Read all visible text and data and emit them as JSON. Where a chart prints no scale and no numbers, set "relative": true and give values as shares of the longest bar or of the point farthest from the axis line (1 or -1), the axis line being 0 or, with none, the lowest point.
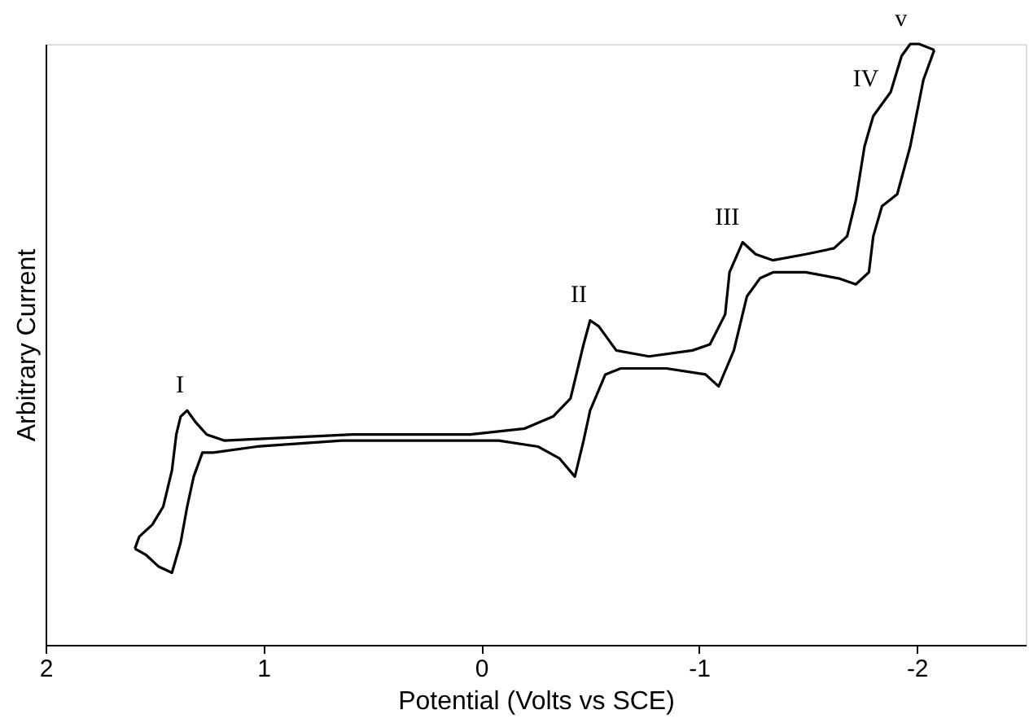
{
  "chart_data": {
    "type": "line",
    "relative": true,
    "xlabel": "Potential (Volts vs SCE)",
    "ylabel": "Arbitrary Current",
    "xlim": [
      2,
      -2.5
    ],
    "xticks": [
      2,
      1,
      0,
      -1,
      -2
    ],
    "grid": false,
    "marker": "none",
    "line_style": "solid",
    "series": [
      {
        "color": "#000000",
        "x": [
          1.59,
          1.57,
          1.51,
          1.46,
          1.42,
          1.4,
          1.38,
          1.35,
          1.31,
          1.26,
          1.18,
          0.59,
          0.05,
          -0.2,
          -0.33,
          -0.41,
          -0.47,
          -0.5,
          -0.54,
          -0.62,
          -0.77,
          -0.97,
          -1.05,
          -1.12,
          -1.14,
          -1.2,
          -1.26,
          -1.34,
          -1.49,
          -1.62,
          -1.68,
          -1.72,
          -1.76,
          -1.8,
          -1.84,
          -1.88,
          -1.93,
          -1.97,
          -2.01,
          -2.08
        ],
        "values": [
          0.16,
          0.18,
          0.2,
          0.23,
          0.29,
          0.35,
          0.38,
          0.39,
          0.37,
          0.35,
          0.34,
          0.35,
          0.35,
          0.36,
          0.38,
          0.41,
          0.5,
          0.54,
          0.53,
          0.49,
          0.48,
          0.49,
          0.5,
          0.55,
          0.62,
          0.67,
          0.65,
          0.64,
          0.65,
          0.66,
          0.68,
          0.74,
          0.83,
          0.88,
          0.9,
          0.92,
          0.98,
          1.0,
          1.0,
          0.99
        ]
      },
      {
        "color": "#000000",
        "x": [
          -2.08,
          -2.03,
          -1.97,
          -1.91,
          -1.84,
          -1.8,
          -1.78,
          -1.72,
          -1.64,
          -1.49,
          -1.34,
          -1.28,
          -1.22,
          -1.16,
          -1.09,
          -1.03,
          -0.85,
          -0.64,
          -0.57,
          -0.5,
          -0.47,
          -0.43,
          -0.36,
          -0.26,
          -0.08,
          0.05,
          0.64,
          1.03,
          1.23,
          1.28,
          1.32,
          1.35,
          1.38,
          1.42,
          1.48,
          1.54,
          1.59
        ],
        "values": [
          0.99,
          0.94,
          0.83,
          0.75,
          0.73,
          0.68,
          0.62,
          0.6,
          0.61,
          0.62,
          0.62,
          0.61,
          0.58,
          0.49,
          0.43,
          0.45,
          0.46,
          0.46,
          0.45,
          0.39,
          0.34,
          0.28,
          0.31,
          0.33,
          0.34,
          0.34,
          0.34,
          0.33,
          0.32,
          0.32,
          0.28,
          0.23,
          0.17,
          0.12,
          0.13,
          0.15,
          0.16
        ]
      }
    ],
    "annotations": [
      {
        "text": "I",
        "x": 1.35,
        "y": 0.39
      },
      {
        "text": "II",
        "x": -0.5,
        "y": 0.54
      },
      {
        "text": "III",
        "x": -1.2,
        "y": 0.67
      },
      {
        "text": "IV",
        "x": -1.84,
        "y": 0.9
      },
      {
        "text": "v",
        "x": -1.97,
        "y": 1.0
      }
    ]
  }
}
